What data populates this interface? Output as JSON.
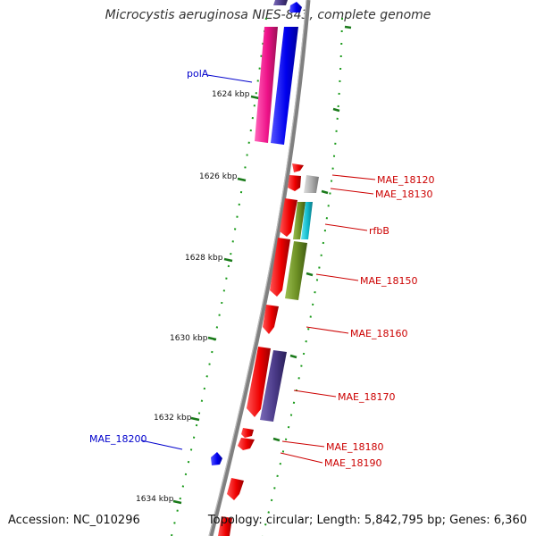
{
  "title": "Microcystis aeruginosa NIES-843, complete genome",
  "footer": {
    "accession": "Accession: NC_010296",
    "topology": "Topology: circular; Length: 5,842,795 bp; Genes: 6,360"
  },
  "ticks": [
    "1624 kbp",
    "1626 kbp",
    "1628 kbp",
    "1630 kbp",
    "1632 kbp",
    "1634 kbp"
  ],
  "gene_labels": [
    {
      "text": "polA",
      "strand": "forward"
    },
    {
      "text": "MAE_18120",
      "strand": "reverse"
    },
    {
      "text": "MAE_18130",
      "strand": "reverse"
    },
    {
      "text": "rfbB",
      "strand": "reverse"
    },
    {
      "text": "MAE_18150",
      "strand": "reverse"
    },
    {
      "text": "MAE_18160",
      "strand": "reverse"
    },
    {
      "text": "MAE_18170",
      "strand": "reverse"
    },
    {
      "text": "MAE_18180",
      "strand": "reverse"
    },
    {
      "text": "MAE_18190",
      "strand": "reverse"
    },
    {
      "text": "MAE_18200",
      "strand": "forward"
    }
  ],
  "colors": {
    "backbone": "#808080",
    "tick": "#1a7a1a",
    "forward_label": "#0000cc",
    "reverse_label": "#cc0000",
    "gene_red": "#ee0000",
    "gene_blue": "#0000ee",
    "gene_magenta": "#ee1188",
    "gene_purple": "#4a3a88",
    "gene_olive": "#6b8e23",
    "gene_gray": "#aaaaaa",
    "gene_cyan": "#11bbcc"
  }
}
